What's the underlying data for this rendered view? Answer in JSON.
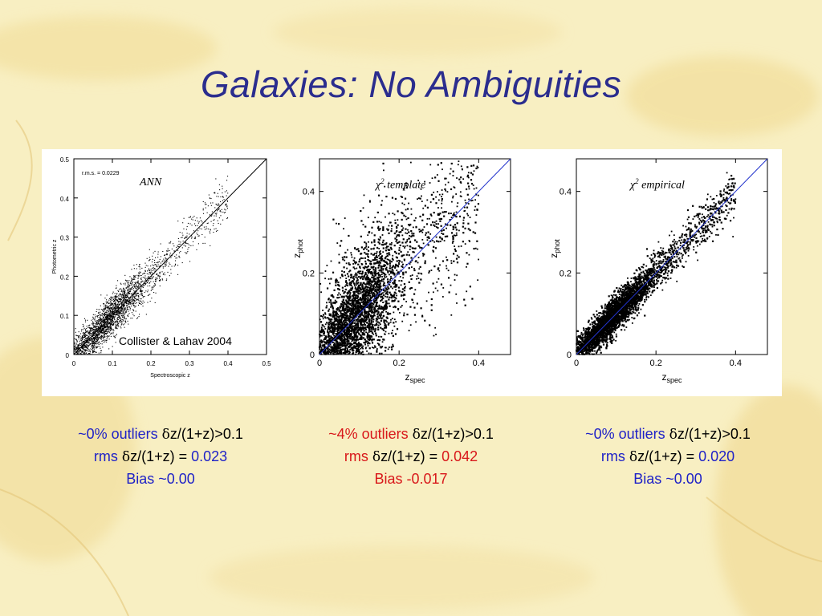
{
  "slide": {
    "title": "Galaxies: No Ambiguities",
    "colors": {
      "background": "#f8efc2",
      "title": "#2b2d8e",
      "blue_text": "#1f22c7",
      "red_text": "#d8171a",
      "diagonal_blue": "#2233cc"
    }
  },
  "chart_data": [
    {
      "type": "scatter",
      "title": "ANN",
      "annotation": "r.m.s. = 0.0229",
      "credit": "Collister & Lahav 2004",
      "xlabel": "Spectroscopic z",
      "ylabel": "Photometric z",
      "xlim": [
        0,
        0.5
      ],
      "ylim": [
        0,
        0.5
      ],
      "xticks": [
        "0",
        "0.1",
        "0.2",
        "0.3",
        "0.4",
        "0.5"
      ],
      "yticks": [
        "0",
        "0.1",
        "0.2",
        "0.3",
        "0.4",
        "0.5"
      ],
      "reference_line": "y = x",
      "point_density": "dense cloud clustered near z 0.05–0.15, tight along y = x",
      "scatter_sigma": 0.023
    },
    {
      "type": "scatter",
      "title_symbol": "χ",
      "title_sup": "2",
      "title_text": "template",
      "xlabel_main": "z",
      "xlabel_sub": "spec",
      "ylabel_main": "z",
      "ylabel_sub": "phot",
      "xlim": [
        0,
        0.48
      ],
      "ylim": [
        0,
        0.48
      ],
      "xticks": [
        "0",
        "0.2",
        "0.4"
      ],
      "yticks": [
        "0",
        "0.2",
        "0.4"
      ],
      "reference_line": "y = x",
      "point_density": "very dense near origin, broad scatter with photometric overestimates",
      "scatter_sigma": 0.042,
      "bias": -0.017
    },
    {
      "type": "scatter",
      "title_symbol": "χ",
      "title_sup": "2",
      "title_text": "empirical",
      "xlabel_main": "z",
      "xlabel_sub": "spec",
      "ylabel_main": "z",
      "ylabel_sub": "phot",
      "xlim": [
        0,
        0.48
      ],
      "ylim": [
        0,
        0.48
      ],
      "xticks": [
        "0",
        "0.2",
        "0.4"
      ],
      "yticks": [
        "0",
        "0.2",
        "0.4"
      ],
      "reference_line": "y = x",
      "point_density": "dense, tight along y = x",
      "scatter_sigma": 0.02
    }
  ],
  "captions": [
    {
      "outliers_value": "~0% outliers ",
      "delta": "δ",
      "outliers_expr": "z/(1+z)>0.1",
      "rms_label": "rms ",
      "rms_expr": "z/(1+z) = ",
      "rms_value": "0.023",
      "bias_label": "Bias ",
      "bias_value": "~0.00"
    },
    {
      "outliers_value": "~4% outliers ",
      "delta": "δ",
      "outliers_expr": "z/(1+z)>0.1",
      "rms_label": "rms ",
      "rms_expr": "z/(1+z) = ",
      "rms_value": "0.042",
      "bias_label": "Bias ",
      "bias_value": "-0.017"
    },
    {
      "outliers_value": "~0% outliers ",
      "delta": "δ",
      "outliers_expr": "z/(1+z)>0.1",
      "rms_label": "rms ",
      "rms_expr": "z/(1+z) = ",
      "rms_value": "0.020",
      "bias_label": "Bias ",
      "bias_value": "~0.00"
    }
  ]
}
